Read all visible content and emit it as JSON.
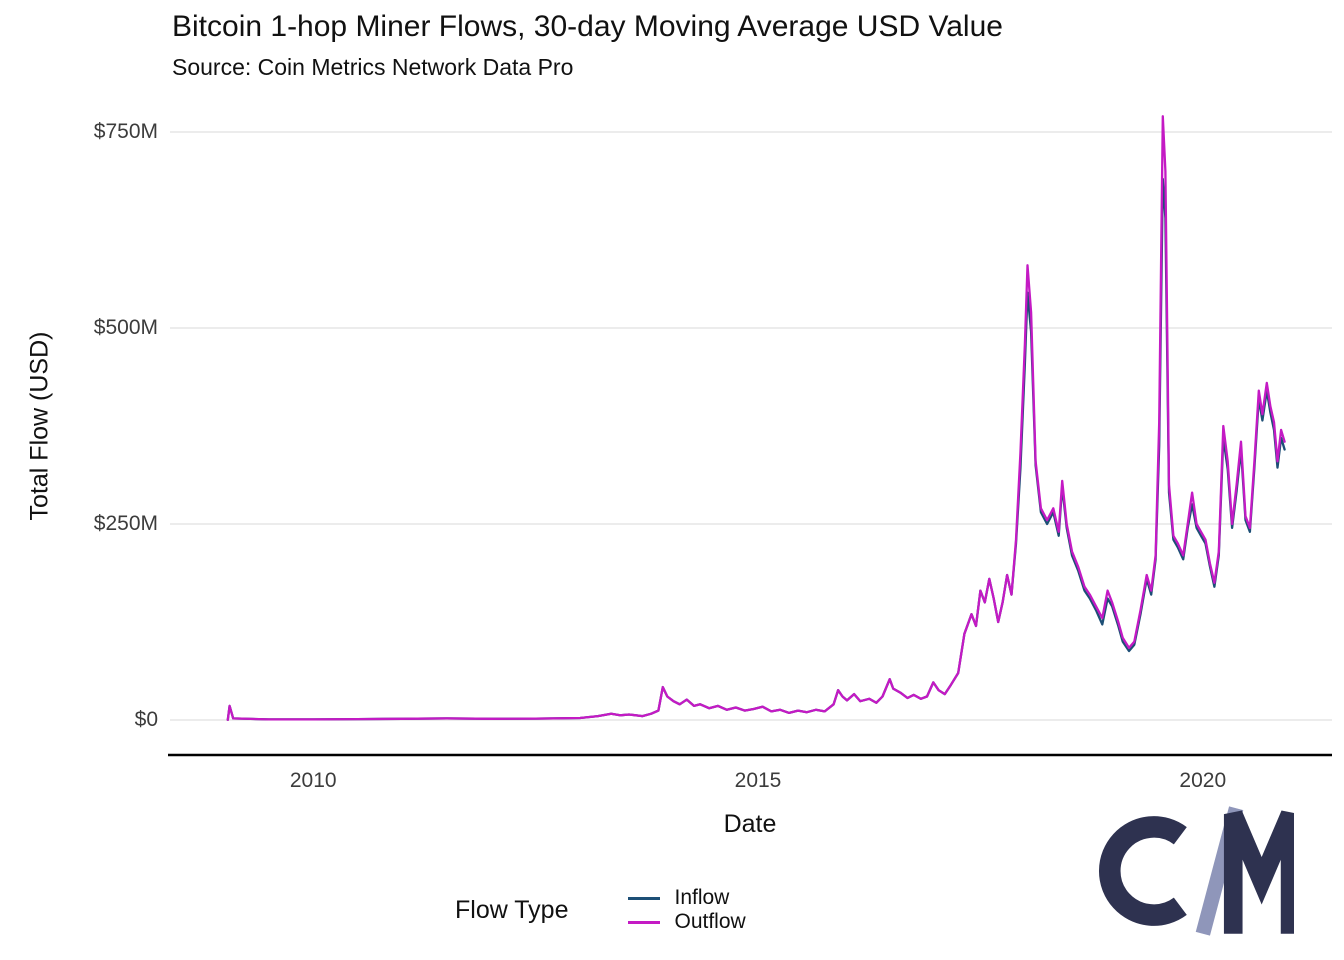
{
  "chart_data": {
    "type": "line",
    "title": "Bitcoin 1-hop Miner Flows, 30-day Moving Average USD Value",
    "subtitle": "Source: Coin Metrics Network Data Pro",
    "xlabel": "Date",
    "ylabel": "Total Flow (USD)",
    "legend_title": "Flow Type",
    "legend_position": "bottom",
    "grid": "horizontal",
    "y_units": "USD millions",
    "xlim": [
      2008.39,
      2021.43
    ],
    "ylim": [
      0,
      750
    ],
    "x_ticks": {
      "values": [
        2010,
        2015,
        2020
      ],
      "labels": [
        "2010",
        "2015",
        "2020"
      ]
    },
    "y_ticks": {
      "values": [
        0,
        250,
        500,
        750
      ],
      "labels": [
        "$0",
        "$250M",
        "$500M",
        "$750M"
      ]
    },
    "x": [
      2009.04,
      2009.06,
      2009.1,
      2009.5,
      2010.0,
      2010.5,
      2011.0,
      2011.5,
      2012.0,
      2012.5,
      2013.0,
      2013.2,
      2013.35,
      2013.45,
      2013.55,
      2013.7,
      2013.8,
      2013.88,
      2013.93,
      2013.98,
      2014.05,
      2014.12,
      2014.2,
      2014.28,
      2014.35,
      2014.45,
      2014.55,
      2014.65,
      2014.75,
      2014.85,
      2014.95,
      2015.05,
      2015.15,
      2015.25,
      2015.35,
      2015.45,
      2015.55,
      2015.65,
      2015.75,
      2015.85,
      2015.9,
      2015.95,
      2016.0,
      2016.08,
      2016.15,
      2016.25,
      2016.33,
      2016.4,
      2016.48,
      2016.52,
      2016.6,
      2016.68,
      2016.75,
      2016.83,
      2016.9,
      2016.97,
      2017.03,
      2017.1,
      2017.17,
      2017.25,
      2017.32,
      2017.4,
      2017.45,
      2017.5,
      2017.55,
      2017.6,
      2017.65,
      2017.7,
      2017.75,
      2017.8,
      2017.85,
      2017.9,
      2017.95,
      2018.0,
      2018.03,
      2018.07,
      2018.12,
      2018.18,
      2018.25,
      2018.32,
      2018.38,
      2018.42,
      2018.47,
      2018.53,
      2018.6,
      2018.67,
      2018.73,
      2018.8,
      2018.87,
      2018.93,
      2018.98,
      2019.05,
      2019.1,
      2019.17,
      2019.23,
      2019.3,
      2019.37,
      2019.42,
      2019.47,
      2019.51,
      2019.55,
      2019.58,
      2019.62,
      2019.67,
      2019.72,
      2019.78,
      2019.83,
      2019.88,
      2019.93,
      2019.98,
      2020.03,
      2020.08,
      2020.13,
      2020.18,
      2020.23,
      2020.28,
      2020.33,
      2020.38,
      2020.43,
      2020.48,
      2020.53,
      2020.58,
      2020.63,
      2020.67,
      2020.72,
      2020.76,
      2020.8,
      2020.84,
      2020.88,
      2020.92
    ],
    "series": [
      {
        "name": "Inflow",
        "color": "#1d4f76",
        "values": [
          0.3,
          18,
          2,
          0.8,
          0.8,
          1.2,
          1.5,
          2,
          1.5,
          1.8,
          2.5,
          5,
          8,
          6,
          7,
          5,
          8,
          12,
          42,
          30,
          24,
          20,
          26,
          18,
          20,
          15,
          18,
          13,
          16,
          12,
          14,
          17,
          11,
          13,
          9,
          12,
          10,
          13,
          11,
          20,
          38,
          30,
          25,
          33,
          24,
          27,
          22,
          30,
          52,
          40,
          35,
          28,
          32,
          27,
          30,
          48,
          38,
          33,
          45,
          60,
          110,
          135,
          120,
          165,
          150,
          180,
          155,
          125,
          150,
          185,
          160,
          225,
          320,
          455,
          545,
          495,
          325,
          265,
          250,
          265,
          235,
          298,
          245,
          210,
          190,
          165,
          155,
          140,
          122,
          155,
          145,
          120,
          100,
          88,
          96,
          135,
          180,
          160,
          205,
          350,
          690,
          640,
          290,
          230,
          220,
          205,
          245,
          275,
          245,
          235,
          225,
          196,
          170,
          210,
          360,
          320,
          245,
          292,
          345,
          255,
          240,
          322,
          410,
          382,
          420,
          392,
          370,
          322,
          360,
          345
        ]
      },
      {
        "name": "Outflow",
        "color": "#c41ac4",
        "values": [
          0.3,
          18,
          2,
          0.8,
          0.8,
          1.2,
          1.5,
          2,
          1.5,
          1.8,
          2.5,
          5,
          8,
          6,
          7,
          5,
          8,
          12,
          42,
          30,
          24,
          20,
          26,
          18,
          20,
          15,
          18,
          13,
          16,
          12,
          14,
          17,
          11,
          13,
          9,
          12,
          10,
          13,
          11,
          20,
          38,
          30,
          25,
          33,
          24,
          27,
          22,
          30,
          52,
          40,
          35,
          28,
          32,
          27,
          30,
          48,
          38,
          33,
          45,
          60,
          110,
          135,
          120,
          165,
          150,
          180,
          155,
          125,
          150,
          185,
          160,
          230,
          340,
          480,
          580,
          520,
          330,
          270,
          255,
          270,
          240,
          305,
          250,
          215,
          195,
          170,
          160,
          145,
          130,
          165,
          150,
          125,
          105,
          92,
          100,
          140,
          185,
          165,
          210,
          380,
          770,
          700,
          300,
          235,
          225,
          210,
          250,
          290,
          250,
          240,
          230,
          200,
          175,
          215,
          375,
          330,
          250,
          300,
          355,
          260,
          245,
          330,
          420,
          390,
          430,
          400,
          380,
          330,
          370,
          355
        ]
      }
    ]
  },
  "colors": {
    "grid": "#e0e0e0",
    "axis": "#000000",
    "title_text": "#111111",
    "tick_text": "#3c3c3c"
  },
  "logo": {
    "name": "coin-metrics-logo",
    "primary": "#2e3250",
    "accent": "#8f96ba"
  }
}
